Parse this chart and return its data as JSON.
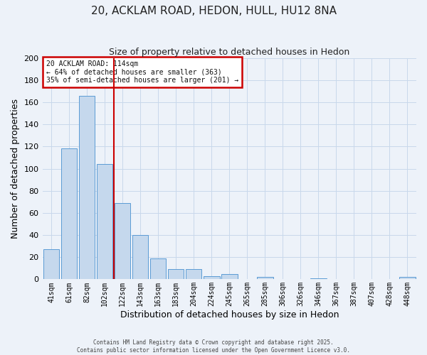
{
  "title": "20, ACKLAM ROAD, HEDON, HULL, HU12 8NA",
  "subtitle": "Size of property relative to detached houses in Hedon",
  "xlabel": "Distribution of detached houses by size in Hedon",
  "ylabel": "Number of detached properties",
  "bar_labels": [
    "41sqm",
    "61sqm",
    "82sqm",
    "102sqm",
    "122sqm",
    "143sqm",
    "163sqm",
    "183sqm",
    "204sqm",
    "224sqm",
    "245sqm",
    "265sqm",
    "285sqm",
    "306sqm",
    "326sqm",
    "346sqm",
    "367sqm",
    "387sqm",
    "407sqm",
    "428sqm",
    "448sqm"
  ],
  "bar_values": [
    27,
    118,
    166,
    104,
    69,
    40,
    19,
    9,
    9,
    3,
    5,
    0,
    2,
    0,
    0,
    1,
    0,
    0,
    0,
    0,
    2
  ],
  "bar_color": "#c5d8ed",
  "bar_edge_color": "#5b9bd5",
  "ylim": [
    0,
    200
  ],
  "yticks": [
    0,
    20,
    40,
    60,
    80,
    100,
    120,
    140,
    160,
    180,
    200
  ],
  "grid_color": "#c8d8eb",
  "bg_color": "#edf2f9",
  "property_line_x": 3.5,
  "annotation_title": "20 ACKLAM ROAD: 114sqm",
  "annotation_line1": "← 64% of detached houses are smaller (363)",
  "annotation_line2": "35% of semi-detached houses are larger (201) →",
  "annotation_box_color": "#ffffff",
  "annotation_border_color": "#cc0000",
  "footer1": "Contains HM Land Registry data © Crown copyright and database right 2025.",
  "footer2": "Contains public sector information licensed under the Open Government Licence v3.0."
}
